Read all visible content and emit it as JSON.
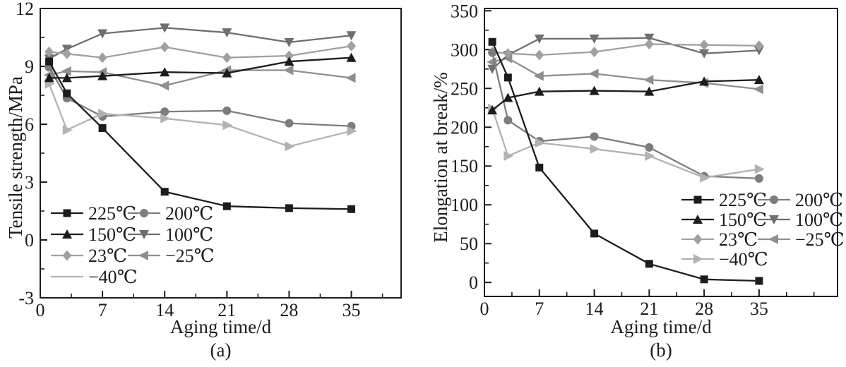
{
  "figure": {
    "background": "#ffffff",
    "frame_color": "#1c1c1c",
    "text_color": "#1c1c1c"
  },
  "chart_data": [
    {
      "type": "line",
      "panel": "a",
      "caption": "(a)",
      "title": "",
      "xlabel": "Aging time/d",
      "ylabel": "Tensile strength/MPa",
      "xlim": [
        0,
        40.6
      ],
      "ylim": [
        -3,
        12
      ],
      "xticks": [
        0,
        7,
        14,
        21,
        28,
        35
      ],
      "xtick_labels": [
        "0",
        "7",
        "14",
        "21",
        "28",
        "35"
      ],
      "yticks": [
        -3,
        0,
        3,
        6,
        9,
        12
      ],
      "ytick_labels": [
        "-3",
        "0",
        "3",
        "6",
        "9",
        "12"
      ],
      "x_minor_step": 3.5,
      "y_minor_step": 1.5,
      "grid": false,
      "legend_position": "bottom-left",
      "x": [
        1,
        3,
        7,
        14,
        21,
        28,
        35
      ],
      "series": [
        {
          "name": "225℃",
          "marker": "square",
          "color": "#1c1c1c",
          "legend_marker": true,
          "values": [
            9.25,
            7.6,
            5.8,
            2.5,
            1.75,
            1.65,
            1.6
          ]
        },
        {
          "name": "200℃",
          "marker": "circle",
          "color": "#7d7d7d",
          "legend_marker": true,
          "values": [
            8.95,
            7.35,
            6.4,
            6.65,
            6.7,
            6.05,
            5.9
          ]
        },
        {
          "name": "150℃",
          "marker": "triangle-up",
          "color": "#1c1c1c",
          "legend_marker": true,
          "values": [
            8.4,
            8.4,
            8.5,
            8.7,
            8.65,
            9.25,
            9.45
          ]
        },
        {
          "name": "100℃",
          "marker": "triangle-down",
          "color": "#6f6f6f",
          "legend_marker": true,
          "values": [
            9.4,
            9.9,
            10.7,
            11.0,
            10.75,
            10.25,
            10.6
          ]
        },
        {
          "name": "23℃",
          "marker": "diamond",
          "color": "#a0a0a0",
          "legend_marker": true,
          "values": [
            9.75,
            9.65,
            9.45,
            10.0,
            9.45,
            9.55,
            10.05
          ]
        },
        {
          "name": "−25℃",
          "marker": "triangle-left",
          "color": "#8f8f8f",
          "legend_marker": true,
          "values": [
            8.55,
            8.75,
            8.7,
            8.0,
            8.8,
            8.8,
            8.4
          ]
        },
        {
          "name": "−40℃",
          "marker": "triangle-right",
          "color": "#b2b2b2",
          "legend_marker": false,
          "values": [
            8.1,
            5.7,
            6.55,
            6.3,
            5.95,
            4.85,
            5.65
          ]
        }
      ]
    },
    {
      "type": "line",
      "panel": "b",
      "caption": "(b)",
      "title": "",
      "xlabel": "Aging time/d",
      "ylabel": "Elongation at break/%",
      "xlim": [
        0,
        45
      ],
      "ylim": [
        -18,
        353
      ],
      "xticks": [
        0,
        7,
        14,
        21,
        28,
        35
      ],
      "xtick_labels": [
        "0",
        "7",
        "14",
        "21",
        "28",
        "35"
      ],
      "yticks": [
        0,
        50,
        100,
        150,
        200,
        250,
        300,
        350
      ],
      "ytick_labels": [
        "0",
        "50",
        "100",
        "150",
        "200",
        "250",
        "300",
        "350"
      ],
      "x_minor_step": 3.5,
      "y_minor_step": 25,
      "grid": false,
      "legend_position": "right-middle",
      "x": [
        1,
        3,
        7,
        14,
        21,
        28,
        35
      ],
      "series": [
        {
          "name": "225℃",
          "marker": "square",
          "color": "#1c1c1c",
          "legend_marker": true,
          "values": [
            310,
            264,
            148,
            63,
            24,
            4,
            2
          ]
        },
        {
          "name": "200℃",
          "marker": "circle",
          "color": "#7d7d7d",
          "legend_marker": true,
          "values": [
            296,
            209,
            182,
            188,
            174,
            137,
            134
          ]
        },
        {
          "name": "150℃",
          "marker": "triangle-up",
          "color": "#1c1c1c",
          "legend_marker": true,
          "values": [
            222,
            238,
            246,
            247,
            246,
            259,
            261
          ]
        },
        {
          "name": "100℃",
          "marker": "triangle-down",
          "color": "#6f6f6f",
          "legend_marker": true,
          "values": [
            275,
            293,
            314,
            314,
            315,
            295,
            299
          ]
        },
        {
          "name": "23℃",
          "marker": "diamond",
          "color": "#a0a0a0",
          "legend_marker": true,
          "values": [
            297,
            295,
            293,
            297,
            307,
            306,
            305
          ]
        },
        {
          "name": "−25℃",
          "marker": "triangle-left",
          "color": "#8f8f8f",
          "legend_marker": true,
          "values": [
            284,
            289,
            266,
            269,
            261,
            257,
            249
          ]
        },
        {
          "name": "−40℃",
          "marker": "triangle-right",
          "color": "#b2b2b2",
          "legend_marker": true,
          "values": [
            224,
            163,
            180,
            172,
            163,
            135,
            146
          ]
        }
      ]
    }
  ]
}
